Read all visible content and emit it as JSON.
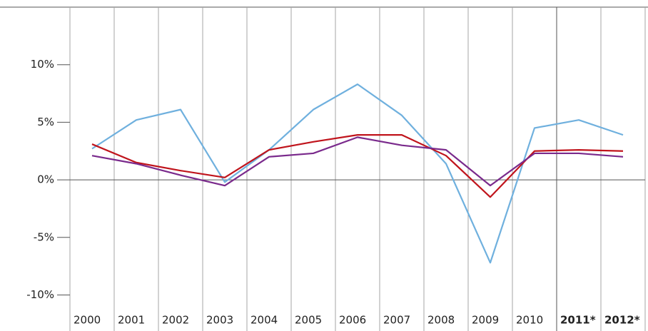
{
  "chart_data": {
    "type": "line",
    "categories": [
      "2000",
      "2001",
      "2002",
      "2003",
      "2004",
      "2005",
      "2006",
      "2007",
      "2008",
      "2009",
      "2010",
      "2011*",
      "2012*"
    ],
    "series": [
      {
        "color": "#6fb0de",
        "values": [
          2.7,
          5.2,
          6.1,
          -0.2,
          2.6,
          6.1,
          8.3,
          5.6,
          1.4,
          -7.2,
          4.5,
          5.2,
          3.9
        ]
      },
      {
        "color": "#c0141c",
        "values": [
          3.1,
          1.5,
          0.8,
          0.2,
          2.6,
          3.3,
          3.9,
          3.9,
          2.1,
          -1.5,
          2.5,
          2.6,
          2.5
        ]
      },
      {
        "color": "#7a2a8c",
        "values": [
          2.1,
          1.4,
          0.4,
          -0.5,
          2.0,
          2.3,
          3.7,
          3.0,
          2.6,
          -0.5,
          2.3,
          2.3,
          2.0
        ]
      }
    ],
    "ylim": [
      -11,
      15
    ],
    "yticks": [
      {
        "value": -10,
        "label": "-10%"
      },
      {
        "value": -5,
        "label": "-5%"
      },
      {
        "value": 0,
        "label": "0%"
      },
      {
        "value": 5,
        "label": "5%"
      },
      {
        "value": 10,
        "label": "10%"
      }
    ]
  }
}
